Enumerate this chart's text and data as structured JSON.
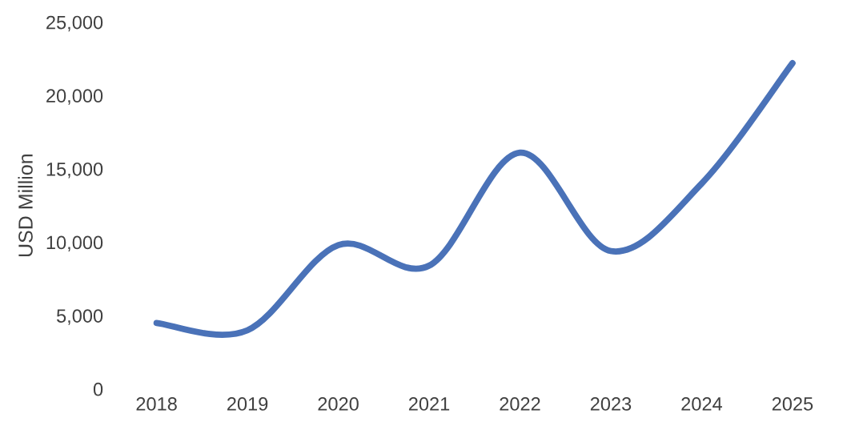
{
  "chart_data": {
    "type": "line",
    "ylabel": "USD Million",
    "categories": [
      "2018",
      "2019",
      "2020",
      "2021",
      "2022",
      "2023",
      "2024",
      "2025"
    ],
    "series": [
      {
        "color": "#4a72b8",
        "values": [
          4500,
          4000,
          9800,
          8400,
          16100,
          9400,
          14000,
          22200
        ]
      }
    ],
    "ylim": [
      0,
      25000
    ],
    "yticks": [
      {
        "value": 0,
        "label": "0"
      },
      {
        "value": 5000,
        "label": "5,000"
      },
      {
        "value": 10000,
        "label": "10,000"
      },
      {
        "value": 15000,
        "label": "15,000"
      },
      {
        "value": 20000,
        "label": "20,000"
      },
      {
        "value": 25000,
        "label": "25,000"
      }
    ],
    "grid": false,
    "legend": false,
    "marker": "none",
    "line_style": "solid"
  }
}
